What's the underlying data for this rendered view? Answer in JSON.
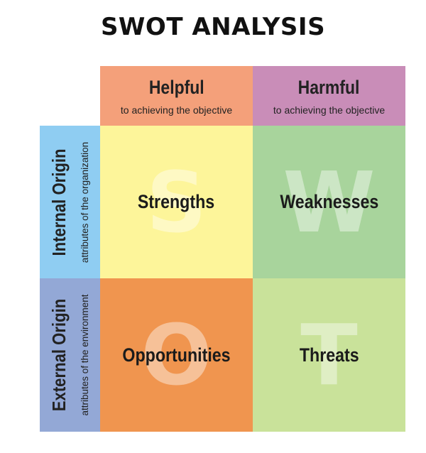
{
  "title": "SWOT ANALYSIS",
  "columns": [
    {
      "label": "Helpful",
      "sublabel": "to achieving the objective",
      "color": "#f4a07a"
    },
    {
      "label": "Harmful",
      "sublabel": "to achieving the objective",
      "color": "#c98db8"
    }
  ],
  "rows": [
    {
      "label": "Internal Origin",
      "sublabel": "attributes of the organization",
      "color": "#8fcdf2"
    },
    {
      "label": "External Origin",
      "sublabel": "attributes of the environment",
      "color": "#93a8d6"
    }
  ],
  "quadrants": {
    "strengths": {
      "letter": "S",
      "label": "Strengths",
      "color": "#fdf59a"
    },
    "weaknesses": {
      "letter": "W",
      "label": "Weaknesses",
      "color": "#a8d49c"
    },
    "opportunities": {
      "letter": "O",
      "label": "Opportunities",
      "color": "#f0954f"
    },
    "threats": {
      "letter": "T",
      "label": "Threats",
      "color": "#c9e29a"
    }
  }
}
